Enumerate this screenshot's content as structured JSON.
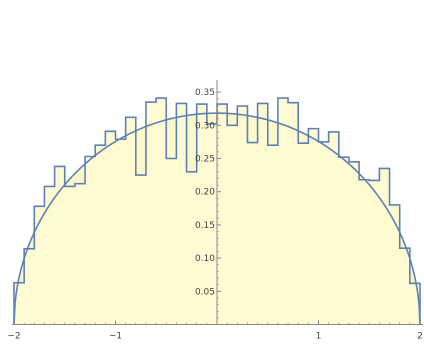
{
  "chart_data": {
    "type": "area",
    "title": "",
    "xlabel": "",
    "ylabel": "",
    "xlim": [
      -2,
      2
    ],
    "ylim": [
      0,
      0.36
    ],
    "grid": false,
    "legend": "none",
    "x_ticks": [
      -2,
      -1,
      1,
      2
    ],
    "x_tick_labels": [
      "−2",
      "−1",
      "1",
      "2"
    ],
    "y_ticks": [
      0.05,
      0.1,
      0.15,
      0.2,
      0.25,
      0.3,
      0.35
    ],
    "y_tick_labels": [
      "0.05",
      "0.10",
      "0.15",
      "0.20",
      "0.25",
      "0.30",
      "0.35"
    ],
    "histogram": {
      "bin_width": 0.1,
      "bin_starts": [
        -2.0,
        -1.9,
        -1.8,
        -1.7,
        -1.6,
        -1.5,
        -1.4,
        -1.3,
        -1.2,
        -1.1,
        -1.0,
        -0.9,
        -0.8,
        -0.7,
        -0.6,
        -0.5,
        -0.4,
        -0.3,
        -0.2,
        -0.1,
        0.0,
        0.1,
        0.2,
        0.3,
        0.4,
        0.5,
        0.6,
        0.7,
        0.8,
        0.9,
        1.0,
        1.1,
        1.2,
        1.3,
        1.4,
        1.5,
        1.6,
        1.7,
        1.8,
        1.9
      ],
      "values": [
        0.063,
        0.114,
        0.178,
        0.208,
        0.238,
        0.208,
        0.212,
        0.253,
        0.27,
        0.291,
        0.279,
        0.312,
        0.225,
        0.335,
        0.341,
        0.25,
        0.333,
        0.23,
        0.332,
        0.302,
        0.332,
        0.3,
        0.329,
        0.274,
        0.333,
        0.27,
        0.341,
        0.334,
        0.273,
        0.295,
        0.275,
        0.29,
        0.252,
        0.245,
        0.218,
        0.217,
        0.235,
        0.18,
        0.115,
        0.062
      ]
    },
    "curve": {
      "type": "semicircle",
      "radius": 2,
      "peak": 0.3183
    },
    "colors": {
      "histogram_fill": "#fefbd2",
      "histogram_stroke": "#5e81b5",
      "curve_stroke": "#5e81b5",
      "curve_fill": "#fdf8c8",
      "axis": "#888888"
    }
  }
}
